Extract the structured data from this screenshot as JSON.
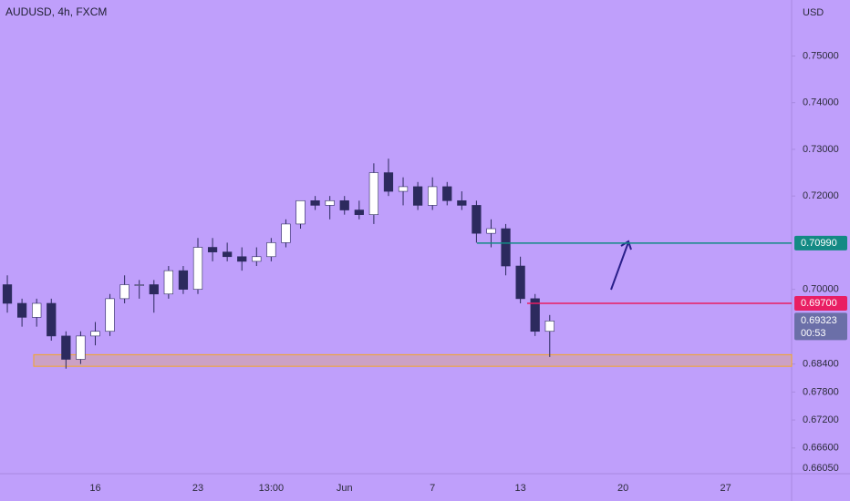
{
  "chart_data": {
    "type": "candlestick",
    "title": "AUDUSD, 4h, FXCM",
    "y_unit": "USD",
    "categories": [
      null,
      null,
      null,
      null,
      null,
      null,
      "16",
      null,
      null,
      null,
      null,
      null,
      null,
      "23",
      null,
      null,
      null,
      null,
      "13:00",
      null,
      null,
      null,
      null,
      "Jun",
      null,
      null,
      null,
      null,
      null,
      "7",
      null,
      null,
      null,
      null,
      null,
      "13",
      null,
      null,
      null,
      null,
      null,
      null,
      "20",
      null,
      null,
      null,
      null,
      null,
      null,
      "27",
      null,
      null,
      null,
      null
    ],
    "open": [
      0.701,
      0.697,
      0.694,
      0.697,
      0.69,
      0.685,
      0.69,
      0.691,
      0.698,
      0.701,
      0.701,
      0.699,
      0.704,
      0.7,
      0.709,
      0.708,
      0.707,
      0.706,
      0.707,
      0.71,
      0.714,
      0.719,
      0.718,
      0.719,
      0.717,
      0.716,
      0.725,
      0.721,
      0.722,
      0.718,
      0.722,
      0.719,
      0.718,
      0.712,
      0.713,
      0.705,
      0.698,
      0.691,
      null,
      null,
      null,
      null,
      null,
      null,
      null,
      null,
      null,
      null,
      null,
      null,
      null,
      null,
      null,
      null
    ],
    "high": [
      0.703,
      0.698,
      0.698,
      0.698,
      0.691,
      0.691,
      0.693,
      0.699,
      0.703,
      0.702,
      0.702,
      0.705,
      0.705,
      0.711,
      0.711,
      0.71,
      0.709,
      0.709,
      0.711,
      0.715,
      0.719,
      0.72,
      0.72,
      0.72,
      0.719,
      0.727,
      0.728,
      0.724,
      0.723,
      0.724,
      0.723,
      0.721,
      0.719,
      0.715,
      0.714,
      0.707,
      0.699,
      0.6945,
      null,
      null,
      null,
      null,
      null,
      null,
      null,
      null,
      null,
      null,
      null,
      null,
      null,
      null,
      null,
      null
    ],
    "low": [
      0.695,
      0.692,
      0.692,
      0.689,
      0.683,
      0.684,
      0.688,
      0.69,
      0.697,
      0.698,
      0.695,
      0.698,
      0.699,
      0.699,
      0.706,
      0.706,
      0.704,
      0.705,
      0.706,
      0.709,
      0.713,
      0.717,
      0.715,
      0.716,
      0.715,
      0.714,
      0.72,
      0.718,
      0.717,
      0.717,
      0.718,
      0.717,
      0.71,
      0.709,
      0.703,
      0.697,
      0.69,
      0.6855,
      null,
      null,
      null,
      null,
      null,
      null,
      null,
      null,
      null,
      null,
      null,
      null,
      null,
      null,
      null,
      null
    ],
    "close": [
      0.697,
      0.694,
      0.697,
      0.69,
      0.685,
      0.69,
      0.691,
      0.698,
      0.701,
      0.701,
      0.699,
      0.704,
      0.7,
      0.709,
      0.708,
      0.707,
      0.706,
      0.707,
      0.71,
      0.714,
      0.719,
      0.718,
      0.719,
      0.717,
      0.716,
      0.725,
      0.721,
      0.722,
      0.718,
      0.722,
      0.719,
      0.718,
      0.712,
      0.713,
      0.705,
      0.698,
      0.691,
      0.69323,
      null,
      null,
      null,
      null,
      null,
      null,
      null,
      null,
      null,
      null,
      null,
      null,
      null,
      null,
      null,
      null
    ],
    "up_color": "#ffffff",
    "down_color": "#2c2a5e",
    "ylim": [
      0.6605,
      0.762
    ],
    "yticks": [
      {
        "value": 0.75,
        "label": "0.75000"
      },
      {
        "value": 0.74,
        "label": "0.74000"
      },
      {
        "value": 0.73,
        "label": "0.73000"
      },
      {
        "value": 0.72,
        "label": "0.72000"
      },
      {
        "value": 0.7,
        "label": "0.70000"
      },
      {
        "value": 0.684,
        "label": "0.68400"
      },
      {
        "value": 0.678,
        "label": "0.67800"
      },
      {
        "value": 0.672,
        "label": "0.67200"
      },
      {
        "value": 0.666,
        "label": "0.66600"
      },
      {
        "value": 0.6605,
        "label": "0.66050"
      }
    ],
    "levels": [
      {
        "value": 0.7099,
        "label": "0.70990",
        "color": "#138a84"
      },
      {
        "value": 0.697,
        "label": "0.69700",
        "color": "#e91e63"
      }
    ],
    "zone": [
      0.6835,
      0.686
    ],
    "zone_color": "#f5a623",
    "last_price": {
      "value": 0.69323,
      "label": "0.69323",
      "countdown": "00:53",
      "color": "#6b6fa8"
    }
  }
}
